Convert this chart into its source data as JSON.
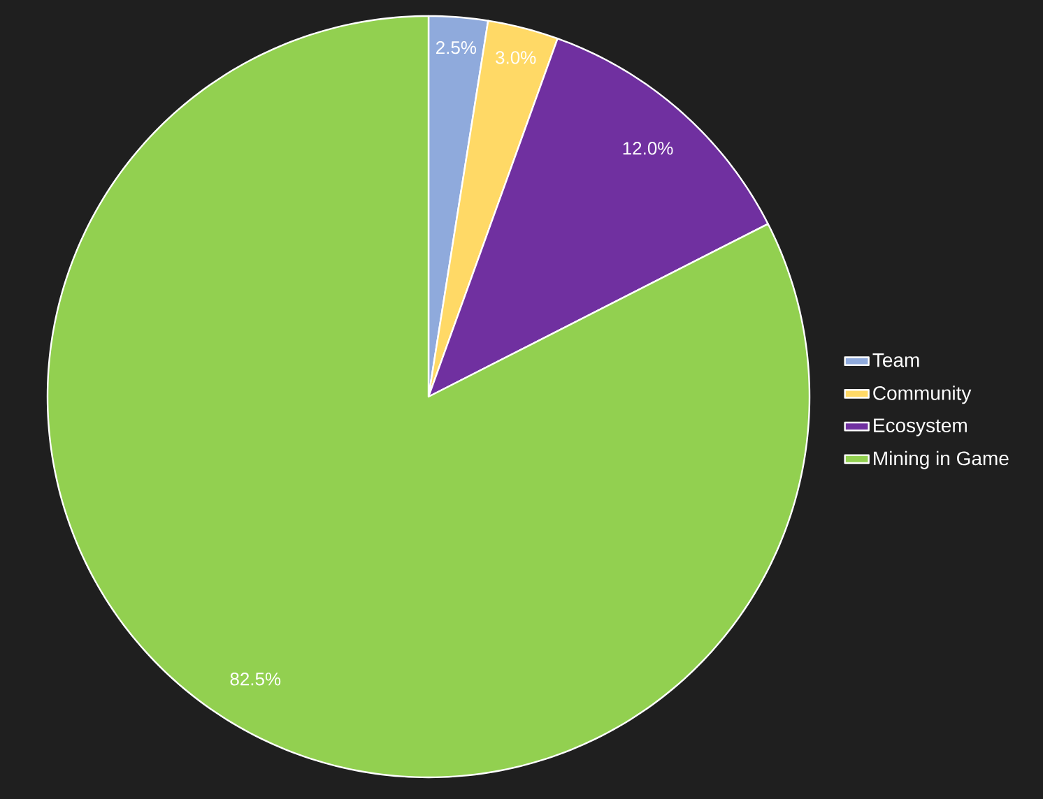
{
  "chart_data": {
    "type": "pie",
    "categories": [
      "Team",
      "Community",
      "Ecosystem",
      "Mining in Game"
    ],
    "values": [
      2.5,
      3.0,
      12.0,
      82.5
    ],
    "colors": [
      "#8faadc",
      "#ffd966",
      "#7030a0",
      "#92d050"
    ],
    "value_labels": [
      "2.5%",
      "3.0%",
      "12.0%",
      "82.5%"
    ],
    "legend": "right"
  }
}
